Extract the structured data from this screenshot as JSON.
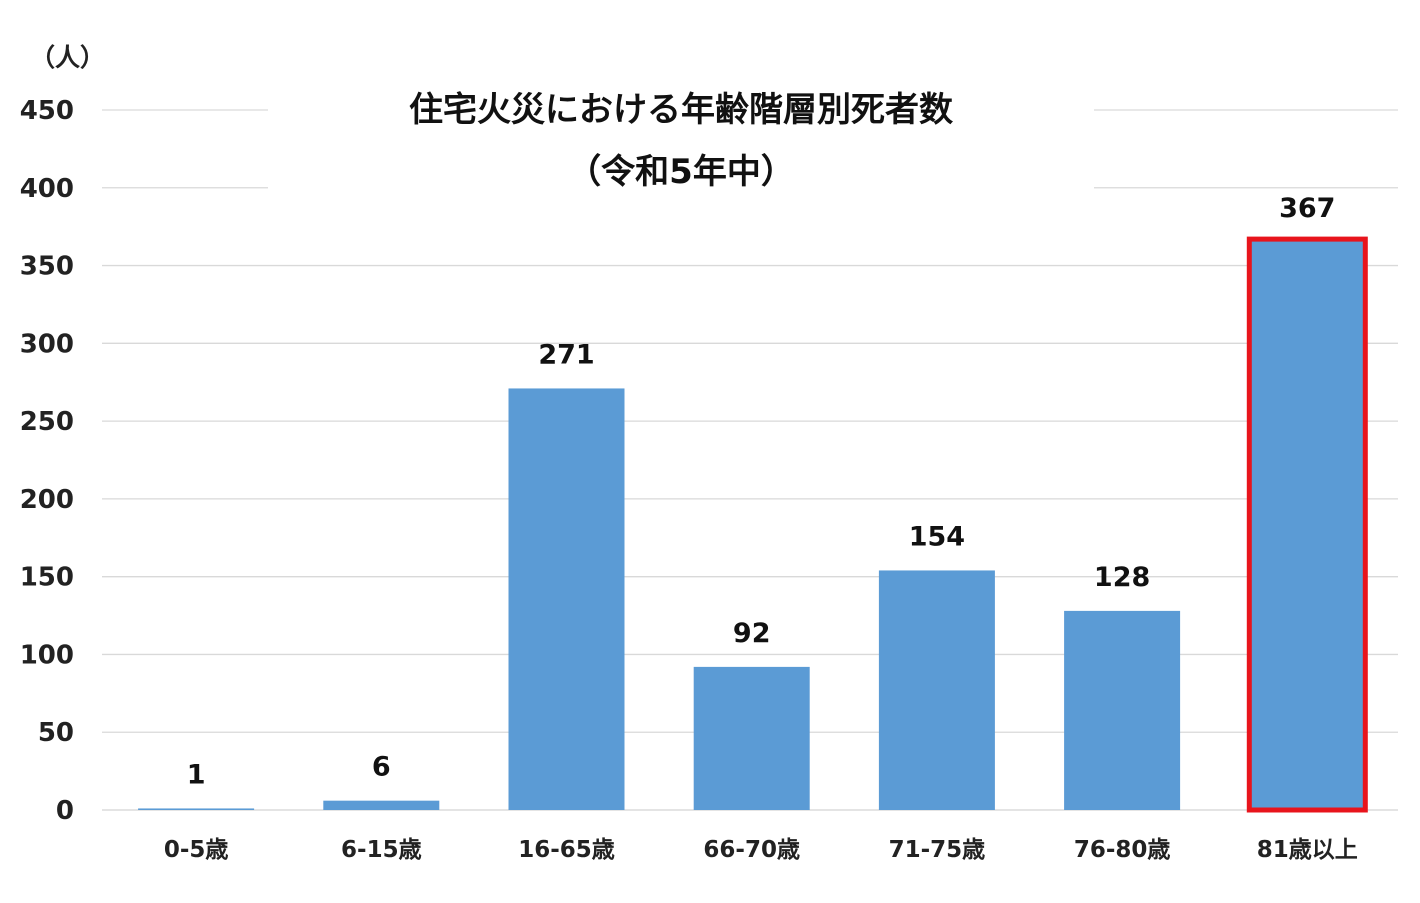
{
  "chart_data": {
    "type": "bar",
    "title": "住宅火災における年齢階層別死者数",
    "subtitle": "（令和5年中）",
    "ylabel": "（人）",
    "xlabel": "",
    "categories": [
      "0-5歳",
      "6-15歳",
      "16-65歳",
      "66-70歳",
      "71-75歳",
      "76-80歳",
      "81歳以上"
    ],
    "values": [
      1,
      6,
      271,
      92,
      154,
      128,
      367
    ],
    "data_labels": [
      "1",
      "6",
      "271",
      "92",
      "154",
      "128",
      "367"
    ],
    "yticks": [
      0,
      50,
      100,
      150,
      200,
      250,
      300,
      350,
      400,
      450
    ],
    "ylim": [
      0,
      450
    ],
    "grid": true,
    "legend": "none",
    "bar_color": "#5b9bd5",
    "highlight_index": 6,
    "highlight_color": "#e8141c",
    "grid_color": "#d9d9d9"
  }
}
